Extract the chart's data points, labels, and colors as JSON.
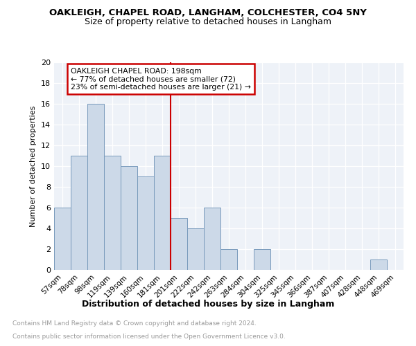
{
  "title": "OAKLEIGH, CHAPEL ROAD, LANGHAM, COLCHESTER, CO4 5NY",
  "subtitle": "Size of property relative to detached houses in Langham",
  "xlabel": "Distribution of detached houses by size in Langham",
  "ylabel": "Number of detached properties",
  "categories": [
    "57sqm",
    "78sqm",
    "98sqm",
    "119sqm",
    "139sqm",
    "160sqm",
    "181sqm",
    "201sqm",
    "222sqm",
    "242sqm",
    "263sqm",
    "284sqm",
    "304sqm",
    "325sqm",
    "345sqm",
    "366sqm",
    "387sqm",
    "407sqm",
    "428sqm",
    "448sqm",
    "469sqm"
  ],
  "values": [
    6,
    11,
    16,
    11,
    10,
    9,
    11,
    5,
    4,
    6,
    2,
    0,
    2,
    0,
    0,
    0,
    0,
    0,
    0,
    1,
    0
  ],
  "bar_color": "#ccd9e8",
  "bar_edge_color": "#7799bb",
  "reference_line_color": "#cc0000",
  "annotation_title": "OAKLEIGH CHAPEL ROAD: 198sqm",
  "annotation_line1": "← 77% of detached houses are smaller (72)",
  "annotation_line2": "23% of semi-detached houses are larger (21) →",
  "annotation_box_color": "#cc0000",
  "ylim": [
    0,
    20
  ],
  "yticks": [
    0,
    2,
    4,
    6,
    8,
    10,
    12,
    14,
    16,
    18,
    20
  ],
  "footer_line1": "Contains HM Land Registry data © Crown copyright and database right 2024.",
  "footer_line2": "Contains public sector information licensed under the Open Government Licence v3.0.",
  "background_color": "#eef2f8",
  "grid_color": "#ffffff"
}
